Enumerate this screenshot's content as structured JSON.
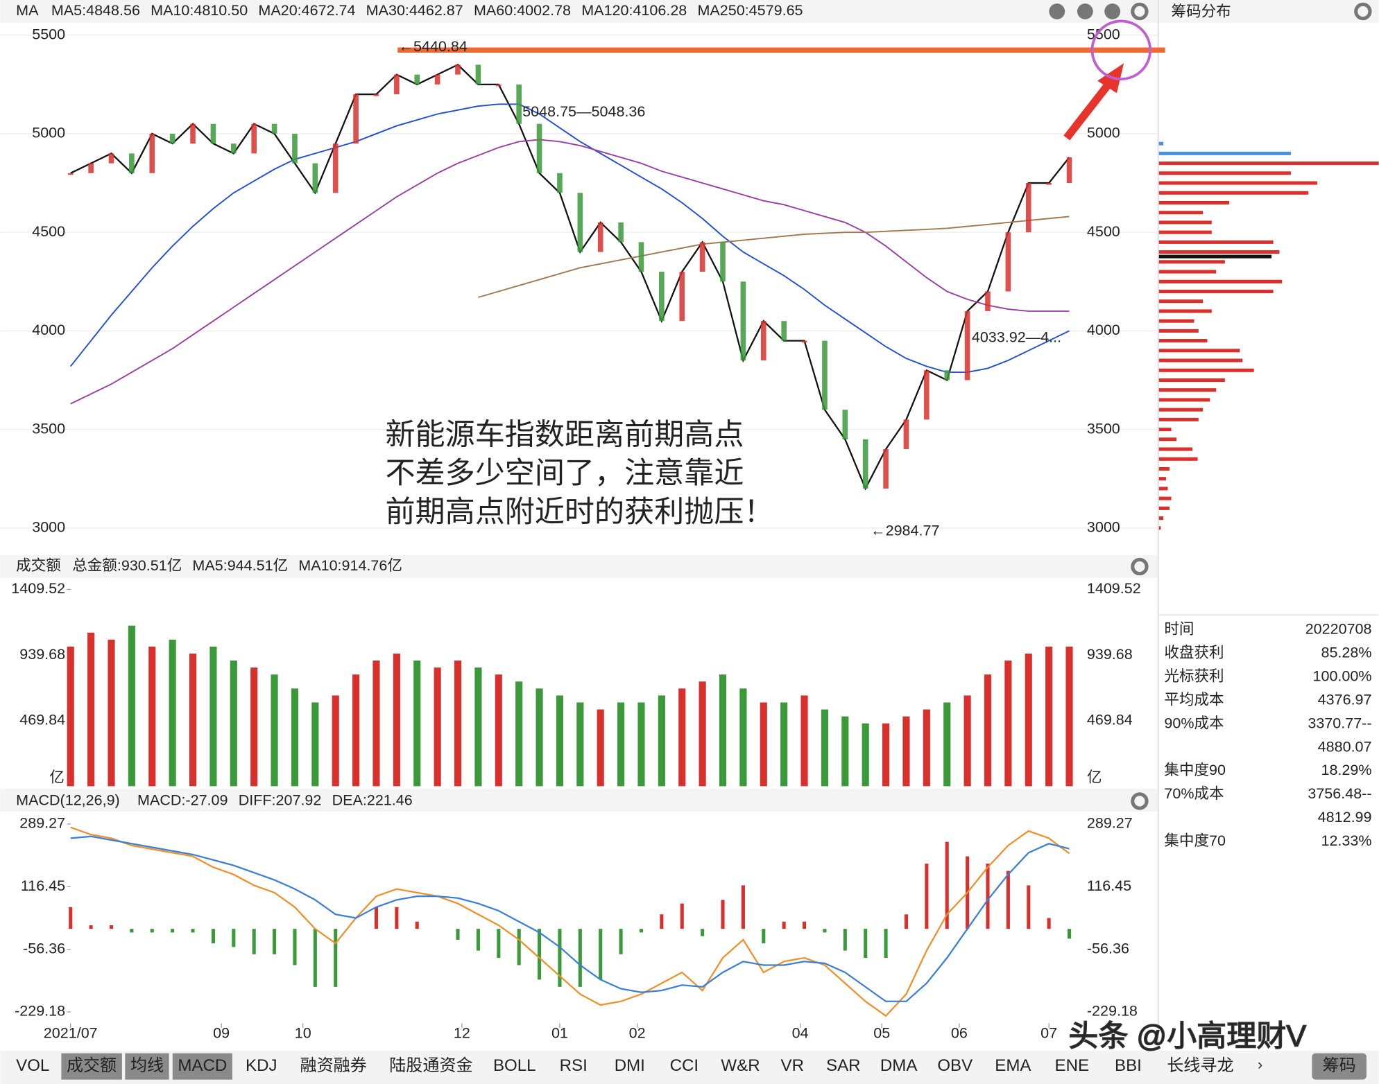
{
  "chart_data": [
    {
      "type": "line",
      "title": "MA",
      "legend": [
        {
          "text": "MA5:4848.56",
          "color": "#111111"
        },
        {
          "text": "MA10:4810.50",
          "color": "#f0902a"
        },
        {
          "text": "MA20:4672.74",
          "color": "#e03c31"
        },
        {
          "text": "MA30:4462.87",
          "color": "#3c9a3c"
        },
        {
          "text": "MA60:4002.78",
          "color": "#1f4fd8"
        },
        {
          "text": "MA120:4106.28",
          "color": "#9a3ea0"
        },
        {
          "text": "MA250:4579.65",
          "color": "#a07850"
        }
      ],
      "x": [
        0,
        5,
        10,
        15,
        20,
        25,
        30,
        35,
        40,
        45,
        50,
        55,
        60,
        65,
        70,
        75,
        80,
        85,
        90,
        95,
        100,
        105,
        110,
        115,
        120,
        125,
        130,
        135,
        140,
        145,
        150,
        155,
        160,
        165,
        170,
        175,
        180,
        185,
        190,
        195,
        200,
        205,
        210,
        215,
        220,
        225,
        230,
        235,
        240,
        245
      ],
      "xlim": [
        0,
        245
      ],
      "ylim": [
        2880,
        5550
      ],
      "yticks": [
        3000,
        3500,
        4000,
        4500,
        5000,
        5500
      ],
      "grid": true,
      "series": [
        {
          "color": "#111111",
          "values": [
            4800,
            4850,
            4900,
            4800,
            5000,
            4950,
            5050,
            4950,
            4900,
            5050,
            5000,
            4850,
            4700,
            4950,
            5200,
            5200,
            5300,
            5250,
            5300,
            5350,
            5250,
            5250,
            5050,
            4800,
            4700,
            4400,
            4550,
            4450,
            4300,
            4050,
            4300,
            4450,
            4250,
            3850,
            4050,
            3950,
            3950,
            3600,
            3450,
            3200,
            3400,
            3550,
            3800,
            3750,
            4100,
            4200,
            4500,
            4750,
            4750,
            4880
          ]
        },
        {
          "color": "#1f4fd8",
          "values": [
            3820,
            3950,
            4080,
            4200,
            4320,
            4430,
            4530,
            4620,
            4700,
            4760,
            4820,
            4870,
            4900,
            4930,
            4960,
            5000,
            5040,
            5070,
            5100,
            5120,
            5140,
            5150,
            5150,
            5100,
            5030,
            4960,
            4900,
            4840,
            4780,
            4720,
            4650,
            4570,
            4480,
            4400,
            4340,
            4280,
            4210,
            4130,
            4060,
            3990,
            3920,
            3860,
            3820,
            3790,
            3790,
            3810,
            3850,
            3900,
            3950,
            4000
          ]
        },
        {
          "color": "#9a3ea0",
          "values": [
            3630,
            3680,
            3730,
            3790,
            3850,
            3910,
            3980,
            4050,
            4120,
            4190,
            4260,
            4330,
            4400,
            4470,
            4540,
            4610,
            4680,
            4740,
            4800,
            4850,
            4890,
            4930,
            4960,
            4970,
            4960,
            4940,
            4910,
            4880,
            4850,
            4810,
            4780,
            4750,
            4720,
            4690,
            4660,
            4640,
            4610,
            4580,
            4550,
            4500,
            4430,
            4350,
            4270,
            4200,
            4160,
            4130,
            4110,
            4100,
            4100,
            4100
          ]
        },
        {
          "color": "#a07850",
          "values": [
            null,
            null,
            null,
            null,
            null,
            null,
            null,
            null,
            null,
            null,
            null,
            null,
            null,
            null,
            null,
            null,
            null,
            null,
            null,
            null,
            4170,
            4200,
            4230,
            4260,
            4290,
            4320,
            4340,
            4360,
            4380,
            4400,
            4420,
            4440,
            4450,
            4460,
            4470,
            4480,
            4490,
            4495,
            4500,
            4500,
            4505,
            4510,
            4515,
            4520,
            4530,
            4540,
            4550,
            4560,
            4570,
            4580
          ]
        }
      ],
      "annotations": [
        "←5440.84",
        "5048.75—5048.36",
        "4033.92—4...",
        "←2984.77"
      ],
      "note_lines": [
        "新能源车指数距离前期高点",
        "不差多少空间了，注意靠近",
        "前期高点附近时的获利抛压！"
      ]
    },
    {
      "type": "bar",
      "title": "成交额",
      "legend": [
        {
          "text": "总金额:930.51亿",
          "color": "#3c9a3c"
        },
        {
          "text": "MA5:944.51亿",
          "color": "#f0902a"
        },
        {
          "text": "MA10:914.76亿",
          "color": "#3a7fd8"
        }
      ],
      "ylim": [
        0,
        1478.7
      ],
      "yticks": [
        469.84,
        939.68,
        1409.52
      ],
      "unit": "亿",
      "values": [
        1000,
        1100,
        1050,
        1150,
        1000,
        1050,
        950,
        1000,
        900,
        850,
        800,
        700,
        600,
        650,
        800,
        900,
        950,
        900,
        850,
        900,
        850,
        800,
        750,
        700,
        650,
        600,
        550,
        600,
        600,
        650,
        700,
        750,
        800,
        700,
        600,
        600,
        650,
        550,
        500,
        450,
        450,
        500,
        550,
        600,
        650,
        800,
        900,
        950,
        1000,
        1000
      ]
    },
    {
      "type": "macd",
      "title": "MACD(12,26,9)",
      "legend": [
        {
          "text": "MACD:-27.09",
          "color": "#3c9a3c"
        },
        {
          "text": "DIFF:207.92",
          "color": "#f0902a"
        },
        {
          "text": "DEA:221.46",
          "color": "#3a7fd8"
        }
      ],
      "ylim": [
        -260.7,
        320.8
      ],
      "yticks": [
        -229.18,
        -56.36,
        116.45,
        289.27
      ],
      "xticks": [
        {
          "value": 0,
          "label": "2021/07"
        },
        {
          "value": 37,
          "label": "09"
        },
        {
          "value": 57,
          "label": "10"
        },
        {
          "value": 96,
          "label": "12"
        },
        {
          "value": 120,
          "label": "01"
        },
        {
          "value": 139,
          "label": "02"
        },
        {
          "value": 179,
          "label": "04"
        },
        {
          "value": 199,
          "label": "05"
        },
        {
          "value": 218,
          "label": "06"
        },
        {
          "value": 240,
          "label": "07"
        }
      ],
      "series": [
        {
          "name": "DIFF",
          "color": "#f0902a",
          "values": [
            280,
            260,
            250,
            230,
            220,
            210,
            200,
            170,
            150,
            120,
            100,
            60,
            0,
            -40,
            30,
            90,
            110,
            100,
            90,
            70,
            40,
            10,
            -30,
            -80,
            -130,
            -180,
            -210,
            -200,
            -180,
            -150,
            -120,
            -170,
            -80,
            -30,
            -120,
            -90,
            -80,
            -100,
            -150,
            -200,
            -240,
            -180,
            -60,
            40,
            100,
            170,
            230,
            270,
            250,
            208
          ]
        },
        {
          "name": "DEA",
          "color": "#3a7fd8",
          "values": [
            250,
            255,
            245,
            235,
            225,
            215,
            205,
            190,
            175,
            155,
            135,
            110,
            80,
            40,
            30,
            60,
            80,
            90,
            90,
            85,
            70,
            50,
            20,
            -10,
            -50,
            -100,
            -140,
            -165,
            -175,
            -170,
            -155,
            -160,
            -120,
            -90,
            -100,
            -100,
            -90,
            -95,
            -120,
            -160,
            -200,
            -200,
            -150,
            -80,
            0,
            80,
            150,
            210,
            235,
            221
          ]
        }
      ],
      "histogram": [
        60,
        10,
        10,
        -10,
        -10,
        -10,
        -10,
        -40,
        -50,
        -70,
        -70,
        -100,
        -160,
        -160,
        0,
        60,
        60,
        20,
        0,
        -30,
        -60,
        -80,
        -100,
        -140,
        -160,
        -160,
        -140,
        -70,
        -10,
        40,
        70,
        -20,
        80,
        120,
        -40,
        20,
        20,
        -10,
        -60,
        -80,
        -80,
        40,
        180,
        240,
        200,
        180,
        160,
        120,
        30,
        -27
      ]
    }
  ],
  "chip_panel": {
    "title": "筹码分布",
    "price_levels": [
      3000,
      3050,
      3100,
      3150,
      3200,
      3250,
      3300,
      3350,
      3400,
      3450,
      3500,
      3550,
      3600,
      3650,
      3700,
      3750,
      3800,
      3850,
      3900,
      3950,
      4000,
      4050,
      4100,
      4150,
      4200,
      4250,
      4300,
      4350,
      4400,
      4450,
      4500,
      4550,
      4600,
      4650,
      4700,
      4750,
      4800,
      4850,
      4900,
      4950
    ],
    "values": [
      2,
      5,
      12,
      14,
      10,
      8,
      12,
      44,
      38,
      20,
      14,
      45,
      50,
      58,
      65,
      75,
      108,
      95,
      92,
      55,
      45,
      40,
      60,
      50,
      130,
      140,
      65,
      75,
      137,
      130,
      60,
      60,
      50,
      80,
      170,
      180,
      150,
      250,
      150,
      5
    ],
    "average_cost": 4376.97,
    "stats": [
      [
        "时间",
        "20220708"
      ],
      [
        "收盘获利",
        "85.28%"
      ],
      [
        "光标获利",
        "100.00%"
      ],
      [
        "平均成本",
        "4376.97"
      ],
      [
        "90%成本",
        "3370.77--"
      ],
      [
        "",
        "4880.07"
      ],
      [
        "集中度90",
        "18.29%"
      ],
      [
        "70%成本",
        "3756.48--"
      ],
      [
        "",
        "4812.99"
      ],
      [
        "集中度70",
        "12.33%"
      ]
    ]
  },
  "toolbar": {
    "tabs": [
      "VOL",
      "成交额",
      "均线",
      "MACD",
      "KDJ",
      "融资融券",
      "陆股通资金",
      "BOLL",
      "RSI",
      "DMI",
      "CCI",
      "W&R",
      "VR",
      "SAR",
      "DMA",
      "OBV",
      "EMA",
      "ENE",
      "BBI",
      "长线寻龙"
    ],
    "button": "筹码"
  },
  "watermark": "头条 @小高理财V"
}
